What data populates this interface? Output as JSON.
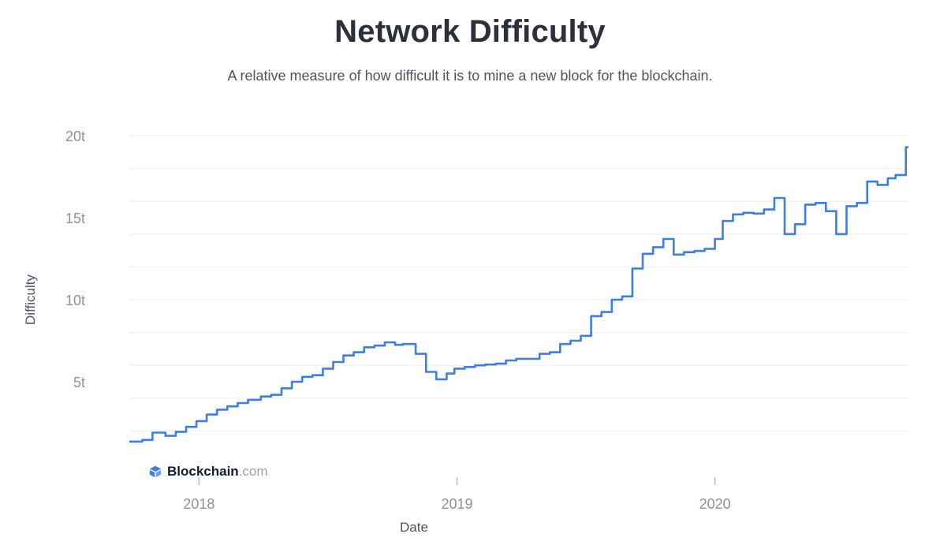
{
  "chart_data": {
    "type": "line",
    "title": "Network Difficulty",
    "subtitle": "A relative measure of how difficult it is to mine a new block for the blockchain.",
    "xlabel": "Date",
    "ylabel": "Difficulty",
    "ylim": [
      0,
      20
    ],
    "yticks": [
      {
        "value": 5,
        "label": "5t"
      },
      {
        "value": 10,
        "label": "10t"
      },
      {
        "value": 15,
        "label": "15t"
      },
      {
        "value": 20,
        "label": "20t"
      }
    ],
    "xlim": [
      2017.73,
      2020.75
    ],
    "xticks": [
      {
        "value": 2018.0,
        "label": "2018"
      },
      {
        "value": 2019.0,
        "label": "2019"
      },
      {
        "value": 2020.0,
        "label": "2020"
      }
    ],
    "grid": true,
    "gridlines": [
      2,
      4,
      6,
      8,
      10,
      12,
      14,
      16,
      18,
      20
    ],
    "series": [
      {
        "name": "Difficulty",
        "color": "#3d7de4",
        "step": true,
        "x": [
          2017.73,
          2017.78,
          2017.82,
          2017.87,
          2017.91,
          2017.95,
          2017.99,
          2018.03,
          2018.07,
          2018.11,
          2018.15,
          2018.19,
          2018.24,
          2018.28,
          2018.32,
          2018.36,
          2018.4,
          2018.44,
          2018.48,
          2018.52,
          2018.56,
          2018.6,
          2018.64,
          2018.68,
          2018.72,
          2018.76,
          2018.79,
          2018.84,
          2018.88,
          2018.92,
          2018.96,
          2018.99,
          2019.03,
          2019.07,
          2019.11,
          2019.15,
          2019.19,
          2019.23,
          2019.27,
          2019.32,
          2019.36,
          2019.4,
          2019.44,
          2019.48,
          2019.52,
          2019.56,
          2019.6,
          2019.64,
          2019.68,
          2019.72,
          2019.76,
          2019.8,
          2019.84,
          2019.88,
          2019.92,
          2019.96,
          2020.0,
          2020.03,
          2020.07,
          2020.11,
          2020.15,
          2020.19,
          2020.23,
          2020.27,
          2020.31,
          2020.35,
          2020.39,
          2020.43,
          2020.47,
          2020.51,
          2020.55,
          2020.59,
          2020.63,
          2020.67,
          2020.7,
          2020.74
        ],
        "values": [
          1.35,
          1.45,
          1.9,
          1.7,
          1.95,
          2.25,
          2.6,
          3.0,
          3.3,
          3.5,
          3.7,
          3.9,
          4.1,
          4.2,
          4.6,
          5.0,
          5.3,
          5.4,
          5.8,
          6.2,
          6.6,
          6.8,
          7.1,
          7.2,
          7.4,
          7.25,
          7.3,
          6.7,
          5.6,
          5.15,
          5.5,
          5.8,
          5.9,
          6.0,
          6.05,
          6.1,
          6.3,
          6.4,
          6.4,
          6.7,
          6.8,
          7.3,
          7.5,
          7.8,
          9.0,
          9.25,
          10.0,
          10.2,
          11.9,
          12.8,
          13.2,
          13.7,
          12.75,
          12.9,
          12.97,
          13.1,
          13.7,
          14.8,
          15.2,
          15.3,
          15.25,
          15.5,
          16.2,
          14.0,
          14.6,
          15.8,
          15.9,
          15.4,
          14.0,
          15.7,
          15.9,
          17.2,
          17.0,
          17.4,
          17.6,
          19.3
        ]
      }
    ]
  },
  "watermark": {
    "brand": "Blockchain",
    "tld": ".com",
    "icon": "blockchain-logo-icon",
    "icon_color": "#3d7de4"
  }
}
